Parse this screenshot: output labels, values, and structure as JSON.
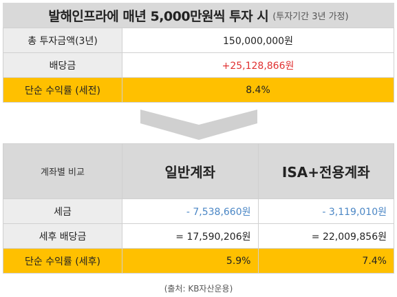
{
  "title": {
    "main": "발해인프라에 매년 5,000만원씩 투자 시",
    "sub": "(투자기간 3년 가정)"
  },
  "summary": {
    "rows": [
      {
        "label": "총 투자금액(3년)",
        "value": "150,000,000원"
      },
      {
        "label": "배당금",
        "value": "+25,128,866원"
      },
      {
        "label": "단순 수익률 (세전)",
        "value": "8.4%"
      }
    ],
    "colors": {
      "highlight": "#ffc000",
      "positive": "#e03030"
    }
  },
  "comparison": {
    "header_label": "계좌별 비교",
    "columns": [
      "일반계좌",
      "ISA+전용계좌"
    ],
    "rows": [
      {
        "label": "세금",
        "values": [
          "- 7,538,660원",
          "- 3,119,010원"
        ]
      },
      {
        "label": "세후 배당금",
        "values": [
          "= 17,590,206원",
          "= 22,009,856원"
        ]
      },
      {
        "label": "단순 수익률 (세후)",
        "values": [
          "5.9%",
          "7.4%"
        ]
      }
    ],
    "colors": {
      "tax": "#4a86c5"
    }
  },
  "source": "(출처: KB자산운용)"
}
